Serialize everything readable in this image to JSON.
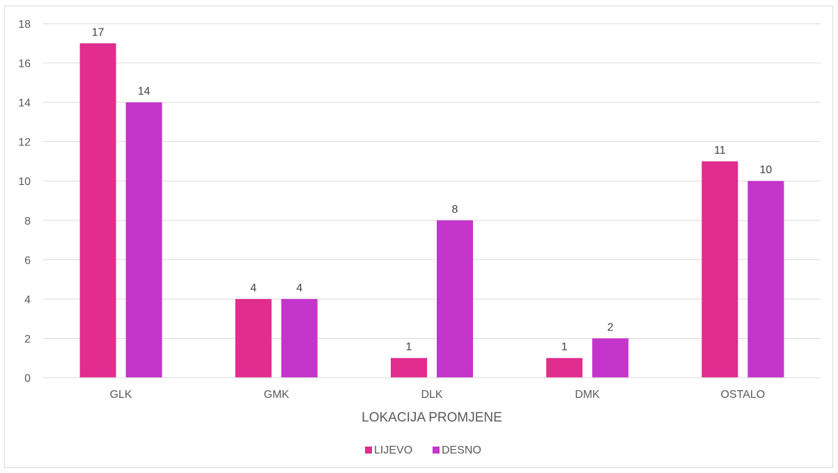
{
  "chart_data": {
    "type": "bar",
    "title": "",
    "xlabel": "LOKACIJA PROMJENE",
    "ylabel": "",
    "categories": [
      "GLK",
      "GMK",
      "DLK",
      "DMK",
      "OSTALO"
    ],
    "series": [
      {
        "name": "LIJEVO",
        "color": "#e02d8e",
        "values": [
          17,
          4,
          1,
          1,
          11
        ]
      },
      {
        "name": "DESNO",
        "color": "#c435cc",
        "values": [
          14,
          4,
          8,
          2,
          10
        ]
      }
    ],
    "ylim": [
      0,
      18
    ],
    "yticks": [
      0,
      2,
      4,
      6,
      8,
      10,
      12,
      14,
      16,
      18
    ],
    "grid": true,
    "legend": "bottom",
    "data_labels": true
  }
}
